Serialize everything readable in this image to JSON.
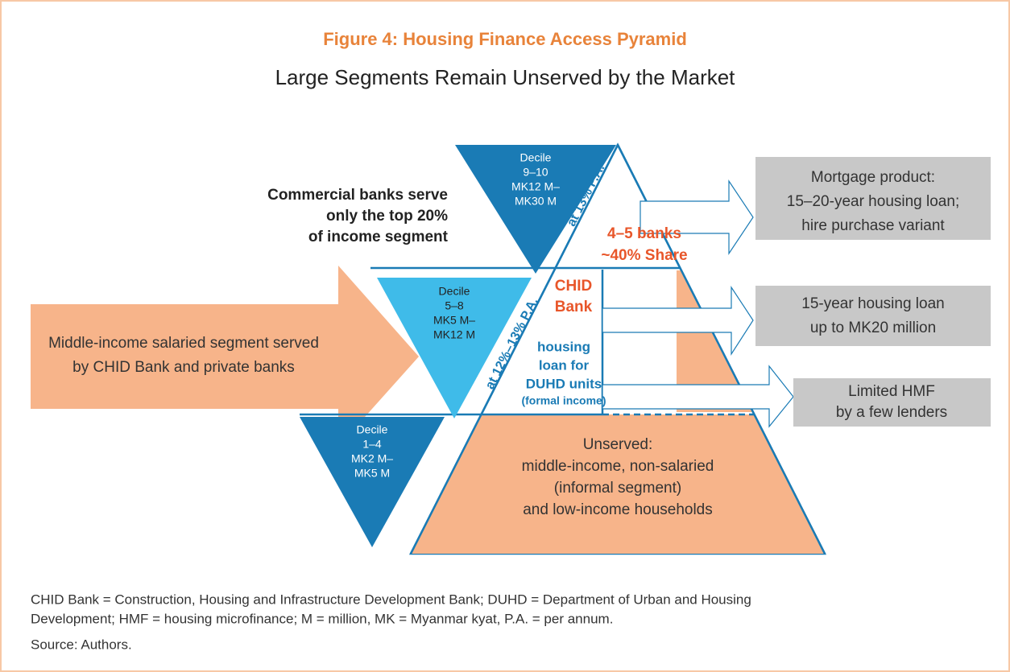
{
  "header": {
    "title": "Figure 4: Housing Finance Access Pyramid",
    "subtitle": "Large Segments Remain Unserved by the Market"
  },
  "deciles": [
    {
      "lines": [
        "Decile",
        "9–10",
        "MK12 M–",
        "MK30 M"
      ]
    },
    {
      "lines": [
        "Decile",
        "5–8",
        "MK5 M–",
        "MK12 M"
      ]
    },
    {
      "lines": [
        "Decile",
        "1–4",
        "MK2 M–",
        "MK5 M"
      ]
    }
  ],
  "top_note": [
    "Commercial banks serve",
    "only the top 20%",
    "of income segment"
  ],
  "left_arrow": [
    "Middle-income salaried segment served",
    "by CHID Bank and private banks"
  ],
  "rates": [
    "at 13% P.A.",
    "at 12%–13% P.A."
  ],
  "top_segment": [
    "4–5 banks",
    "~40% Share"
  ],
  "chid": [
    "CHID",
    "Bank"
  ],
  "duhd": [
    "housing",
    "loan for",
    "DUHD units",
    "(formal income)"
  ],
  "unserved": [
    "Unserved:",
    "middle-income, non-salaried",
    "(informal segment)",
    "and low-income households"
  ],
  "products": [
    {
      "lines": [
        "Mortgage product:",
        "15–20-year housing loan;",
        "hire purchase variant"
      ]
    },
    {
      "lines": [
        "15-year housing loan",
        "up to MK20 million"
      ]
    },
    {
      "lines": [
        "Limited HMF",
        "by a few lenders"
      ]
    }
  ],
  "footnote": {
    "notes": [
      "CHID Bank = Construction, Housing and Infrastructure Development Bank; DUHD = Department of Urban and Housing",
      "Development; HMF = housing microfinance; M = million, MK = Myanmar kyat, P.A. = per annum."
    ],
    "source": "Source: Authors."
  }
}
